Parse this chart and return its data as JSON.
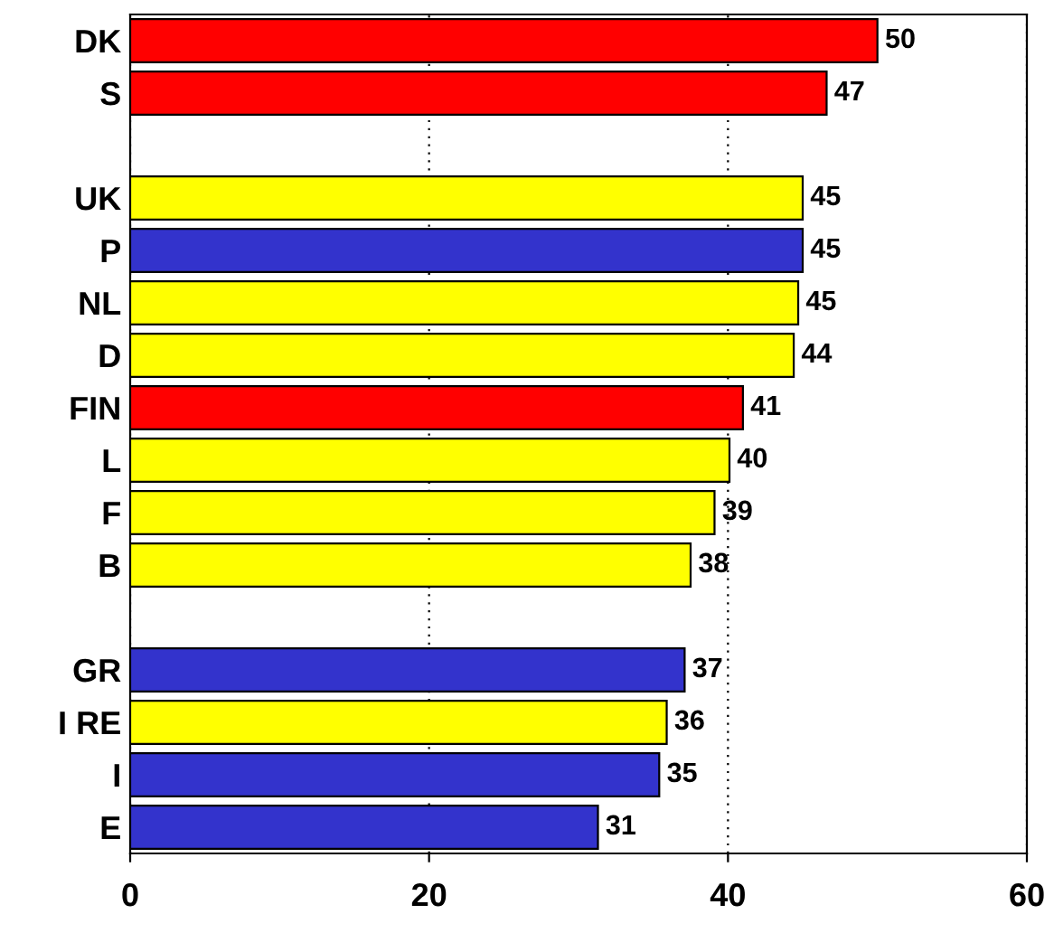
{
  "chart_data": {
    "type": "bar",
    "orientation": "horizontal",
    "categories": [
      "DK",
      "S",
      null,
      "UK",
      "P",
      "NL",
      "D",
      "FIN",
      "L",
      "F",
      "B",
      null,
      "GR",
      "I RE",
      "I",
      "E"
    ],
    "values": [
      50,
      46.6,
      null,
      45,
      45,
      44.7,
      44.4,
      41,
      40.1,
      39.1,
      37.5,
      null,
      37.1,
      35.9,
      35.4,
      31.3
    ],
    "colors": [
      "#ff0000",
      "#ff0000",
      null,
      "#ffff00",
      "#3333cc",
      "#ffff00",
      "#ffff00",
      "#ff0000",
      "#ffff00",
      "#ffff00",
      "#ffff00",
      null,
      "#3333cc",
      "#ffff00",
      "#3333cc",
      "#3333cc"
    ],
    "value_labels": [
      "50",
      "47",
      null,
      "45",
      "45",
      "45",
      "44",
      "41",
      "40",
      "39",
      "38",
      null,
      "37",
      "36",
      "35",
      "31"
    ],
    "xlim": [
      0,
      60
    ],
    "xticks": [
      0,
      20,
      40,
      60
    ],
    "grid": "x"
  }
}
